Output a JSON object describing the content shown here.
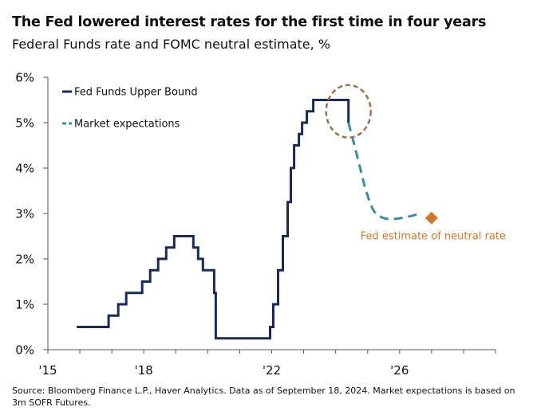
{
  "title": "The Fed lowered interest rates for the first time in four years",
  "subtitle": "Federal Funds rate and FOMC neutral estimate, %",
  "source": "Source: Bloomberg Finance L.P., Haver Analytics. Data as of September 18, 2024. Market expectations is based on 3m SOFR Futures.",
  "colors": {
    "fed_funds": "#1b2a52",
    "market": "#3b8ca3",
    "neutral": "#c97a2f",
    "circle": "#9a7150",
    "axis": "#555555"
  },
  "chart_data": {
    "type": "line",
    "xlim": [
      2015,
      2029
    ],
    "ylim": [
      0,
      6
    ],
    "x_ticks": [
      2015,
      2018,
      2022,
      2026
    ],
    "x_tick_labels": [
      "'15",
      "'18",
      "'22",
      "'26"
    ],
    "y_ticks": [
      0,
      1,
      2,
      3,
      4,
      5,
      6
    ],
    "y_tick_labels": [
      "0%",
      "1%",
      "2%",
      "3%",
      "4%",
      "5%",
      "6%"
    ],
    "grid": false,
    "legend_position": "top-left",
    "series": [
      {
        "name": "Fed Funds Upper Bound",
        "style": "step",
        "points": [
          [
            2015.9,
            0.5
          ],
          [
            2016.9,
            0.5
          ],
          [
            2016.9,
            0.75
          ],
          [
            2017.2,
            0.75
          ],
          [
            2017.2,
            1.0
          ],
          [
            2017.45,
            1.0
          ],
          [
            2017.45,
            1.25
          ],
          [
            2017.95,
            1.25
          ],
          [
            2017.95,
            1.5
          ],
          [
            2018.2,
            1.5
          ],
          [
            2018.2,
            1.75
          ],
          [
            2018.45,
            1.75
          ],
          [
            2018.45,
            2.0
          ],
          [
            2018.7,
            2.0
          ],
          [
            2018.7,
            2.25
          ],
          [
            2018.95,
            2.25
          ],
          [
            2018.95,
            2.5
          ],
          [
            2019.55,
            2.5
          ],
          [
            2019.55,
            2.25
          ],
          [
            2019.7,
            2.25
          ],
          [
            2019.7,
            2.0
          ],
          [
            2019.85,
            2.0
          ],
          [
            2019.85,
            1.75
          ],
          [
            2020.2,
            1.75
          ],
          [
            2020.2,
            1.25
          ],
          [
            2020.25,
            1.25
          ],
          [
            2020.25,
            0.25
          ],
          [
            2021.95,
            0.25
          ],
          [
            2021.95,
            0.5
          ],
          [
            2022.05,
            0.5
          ],
          [
            2022.05,
            1.0
          ],
          [
            2022.2,
            1.0
          ],
          [
            2022.2,
            1.75
          ],
          [
            2022.35,
            1.75
          ],
          [
            2022.35,
            2.5
          ],
          [
            2022.5,
            2.5
          ],
          [
            2022.5,
            3.25
          ],
          [
            2022.6,
            3.25
          ],
          [
            2022.6,
            4.0
          ],
          [
            2022.7,
            4.0
          ],
          [
            2022.7,
            4.5
          ],
          [
            2022.85,
            4.5
          ],
          [
            2022.85,
            4.75
          ],
          [
            2022.95,
            4.75
          ],
          [
            2022.95,
            5.0
          ],
          [
            2023.1,
            5.0
          ],
          [
            2023.1,
            5.25
          ],
          [
            2023.3,
            5.25
          ],
          [
            2023.3,
            5.5
          ],
          [
            2024.4,
            5.5
          ],
          [
            2024.4,
            5.0
          ]
        ]
      },
      {
        "name": "Market expectations",
        "style": "dashed",
        "points": [
          [
            2024.4,
            5.0
          ],
          [
            2024.55,
            4.6
          ],
          [
            2024.75,
            4.05
          ],
          [
            2024.95,
            3.5
          ],
          [
            2025.2,
            3.05
          ],
          [
            2025.5,
            2.9
          ],
          [
            2025.85,
            2.88
          ],
          [
            2026.2,
            2.92
          ],
          [
            2026.5,
            2.97
          ],
          [
            2026.7,
            3.0
          ]
        ]
      }
    ],
    "annotations": [
      {
        "label": "Fed estimate of neutral rate",
        "x": 2027.0,
        "y": 2.9,
        "marker": "diamond"
      }
    ],
    "highlight_circle": {
      "x": 2024.4,
      "y": 5.25
    }
  }
}
